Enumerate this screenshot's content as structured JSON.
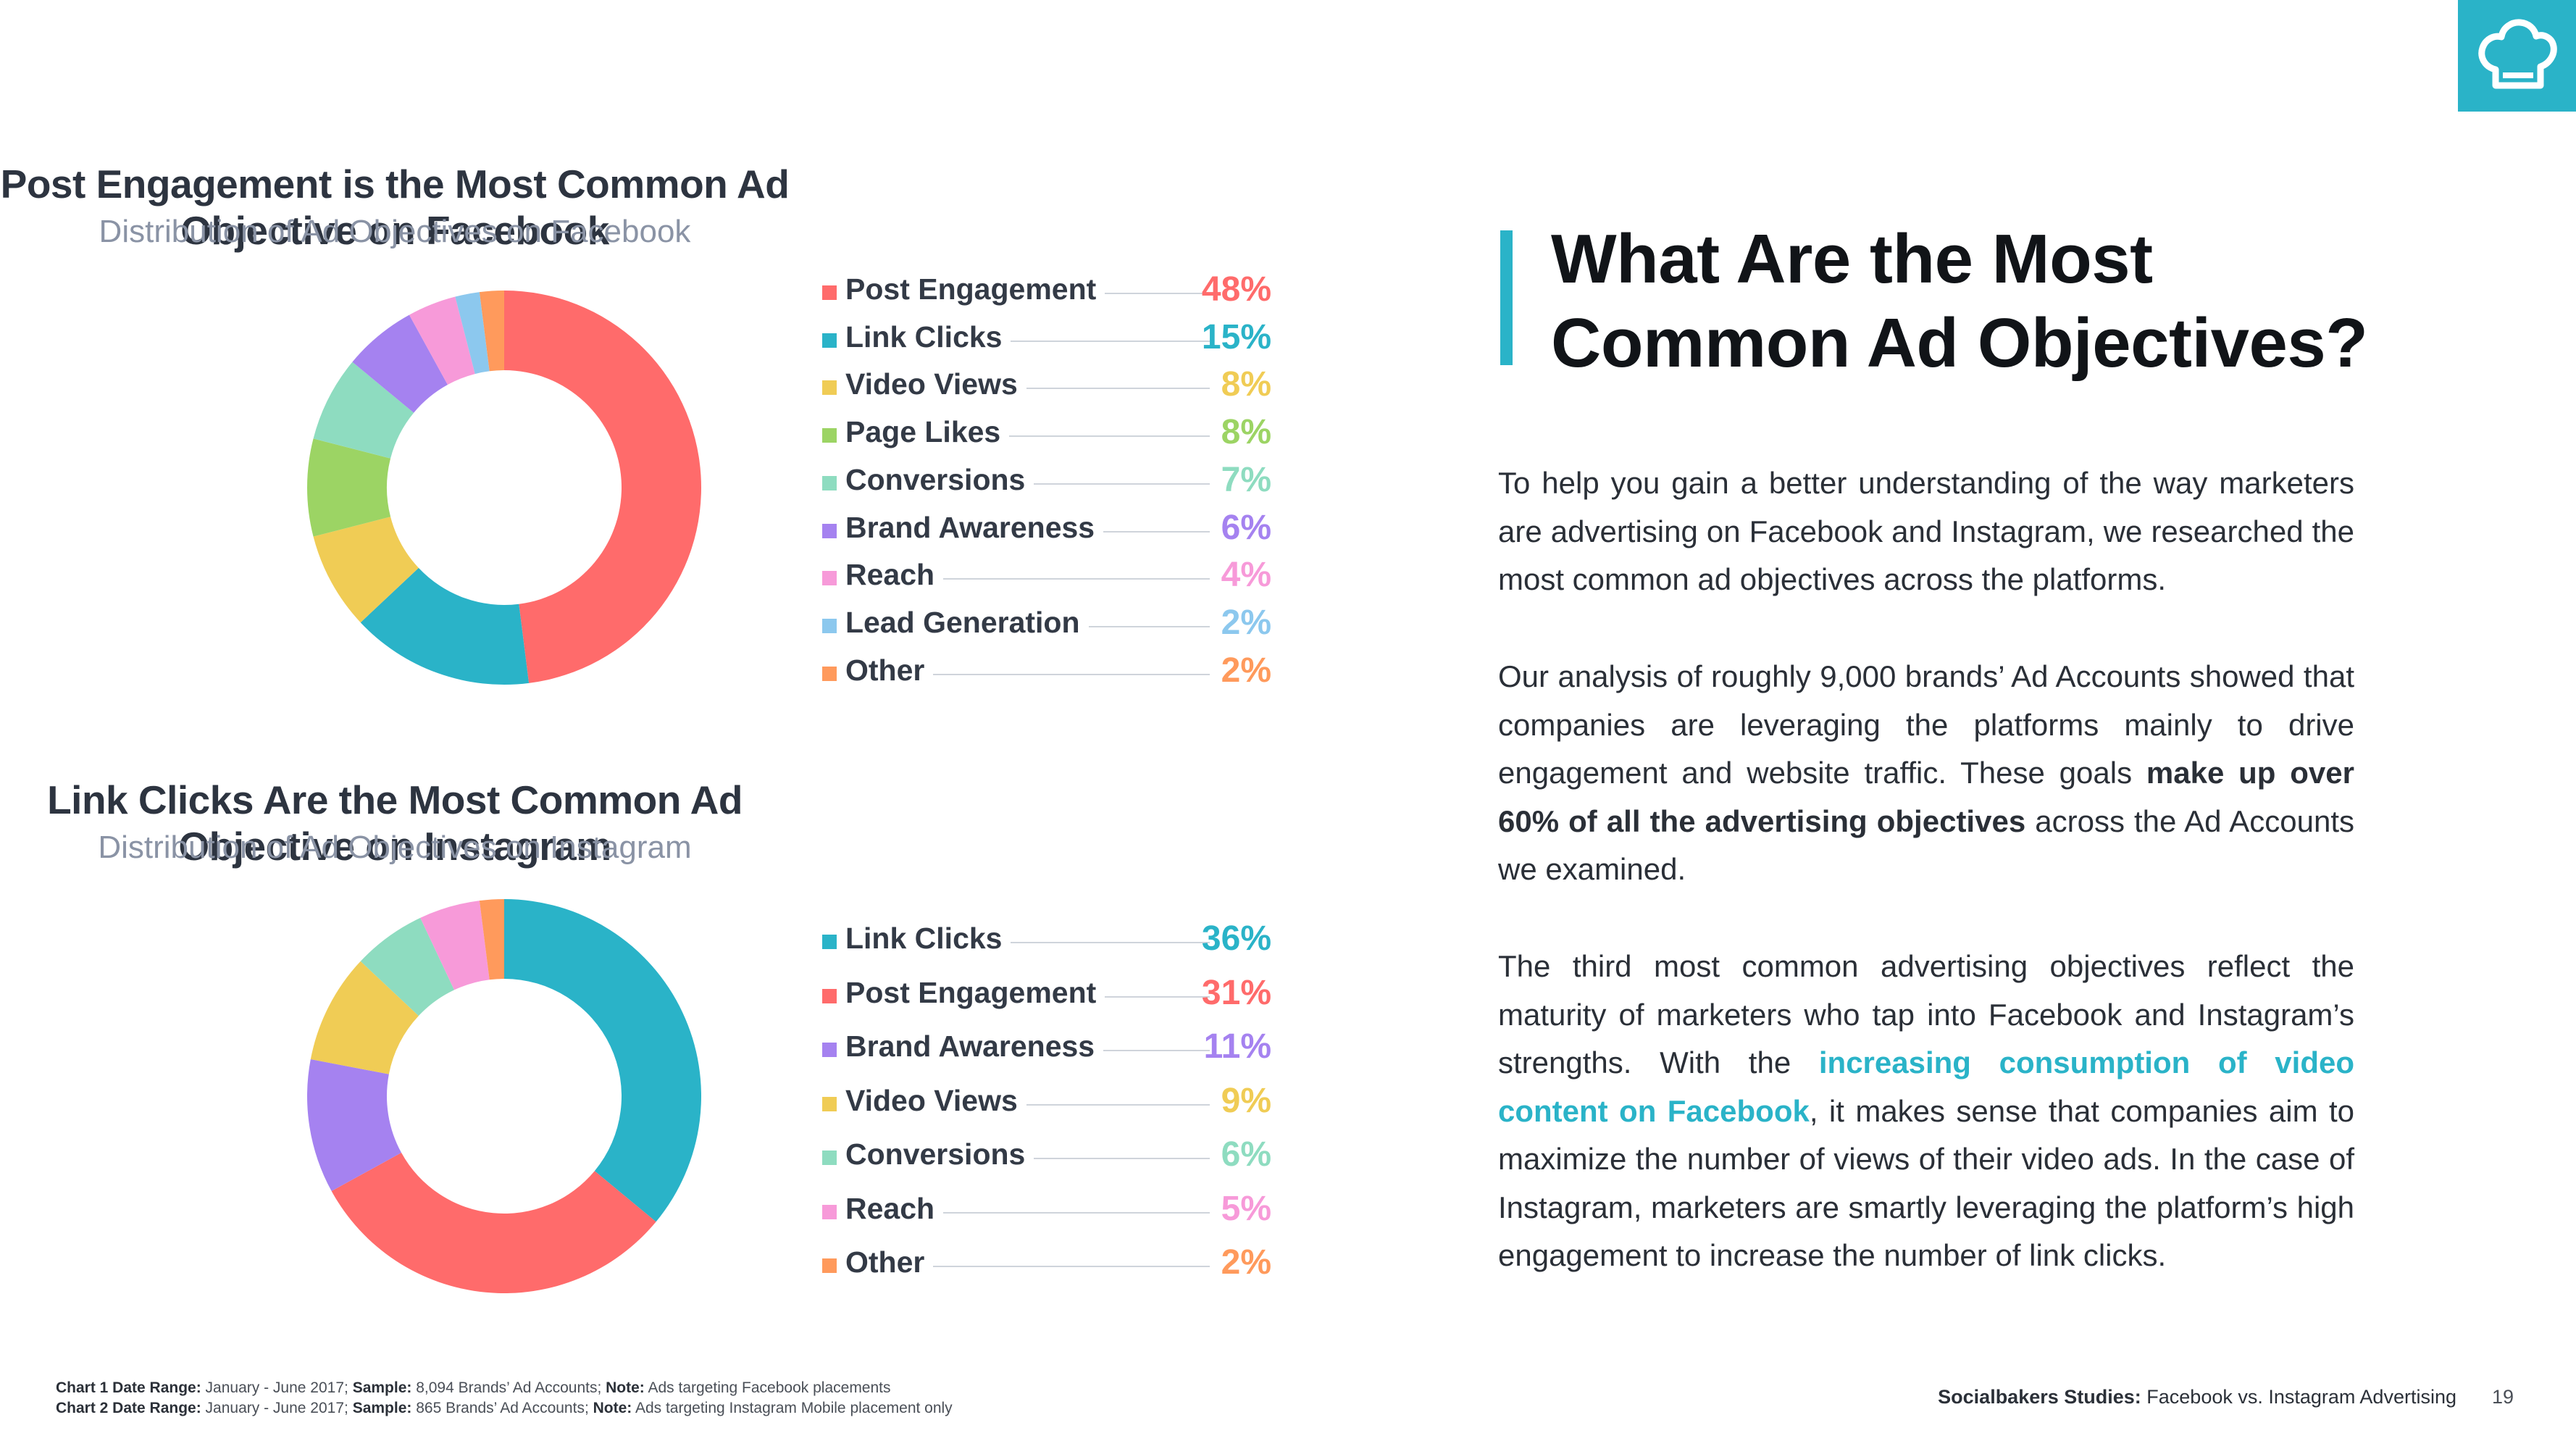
{
  "page": {
    "heading_line1": "What Are the Most",
    "heading_line2": "Common Ad Objectives?",
    "brand_color": "#2ab3c8",
    "paragraph1": "To help you gain a better understanding of the way marketers are advertising on Facebook and Instagram, we researched the most common ad objectives across the platforms.",
    "paragraph2_a": "Our analysis of roughly 9,000 brands’ Ad Accounts showed that companies are leveraging the platforms mainly to drive engagement and website traffic. These goals ",
    "paragraph2_bold": "make up over 60% of all the advertising objectives",
    "paragraph2_b": " across the Ad Accounts we examined.",
    "paragraph3_a": "The third most common advertising objectives reflect the maturity of marketers who tap into Facebook and Instagram’s strengths. With the ",
    "paragraph3_link": "increasing consumption of video content on Facebook",
    "paragraph3_b": ", it makes sense that companies aim to maximize the number of views of their video ads. In the case of Instagram, marketers are smartly leveraging the platform’s high engagement to increase the number of link clicks.",
    "logo_icon": "chef-hat-icon"
  },
  "footnotes": {
    "line1": [
      {
        "label": "Chart 1 Date Range:",
        "text": " January - June 2017; "
      },
      {
        "label": "Sample:",
        "text": " 8,094 Brands’ Ad Accounts; "
      },
      {
        "label": "Note:",
        "text": " Ads targeting Facebook placements"
      }
    ],
    "line2": [
      {
        "label": "Chart 2 Date Range:",
        "text": " January - June 2017; "
      },
      {
        "label": "Sample:",
        "text": " 865 Brands’ Ad Accounts; "
      },
      {
        "label": "Note:",
        "text": " Ads targeting Instagram Mobile placement only"
      }
    ]
  },
  "footer": {
    "study_label": "Socialbakers Studies:",
    "study_title": " Facebook vs. Instagram Advertising",
    "page_number": "19"
  },
  "chart_data": [
    {
      "type": "pie",
      "donut": true,
      "title": "Post Engagement is the Most Common Ad Objective on Facebook",
      "subtitle": "Distribution of Ad Objectives on Facebook",
      "legend_position": "right",
      "categories": [
        "Post Engagement",
        "Link Clicks",
        "Video Views",
        "Page Likes",
        "Conversions",
        "Brand Awareness",
        "Reach",
        "Lead Generation",
        "Other"
      ],
      "values": [
        48,
        15,
        8,
        8,
        7,
        6,
        4,
        2,
        2
      ],
      "labels": [
        "48%",
        "15%",
        "8%",
        "8%",
        "7%",
        "6%",
        "4%",
        "2%",
        "2%"
      ],
      "colors": [
        "#ff6b6b",
        "#2ab3c8",
        "#f0cc55",
        "#9cd464",
        "#8edcc0",
        "#a582f0",
        "#f79ad9",
        "#8cc8ee",
        "#ff9a5c"
      ]
    },
    {
      "type": "pie",
      "donut": true,
      "title": "Link Clicks Are the Most Common Ad Objective on Instagram",
      "subtitle": "Distribution of Ad Objectives on Instagram",
      "legend_position": "right",
      "categories": [
        "Link Clicks",
        "Post Engagement",
        "Brand Awareness",
        "Video Views",
        "Conversions",
        "Reach",
        "Other"
      ],
      "values": [
        36,
        31,
        11,
        9,
        6,
        5,
        2
      ],
      "labels": [
        "36%",
        "31%",
        "11%",
        "9%",
        "6%",
        "5%",
        "2%"
      ],
      "colors": [
        "#2ab3c8",
        "#ff6b6b",
        "#a582f0",
        "#f0cc55",
        "#8edcc0",
        "#f79ad9",
        "#ff9a5c"
      ]
    }
  ]
}
